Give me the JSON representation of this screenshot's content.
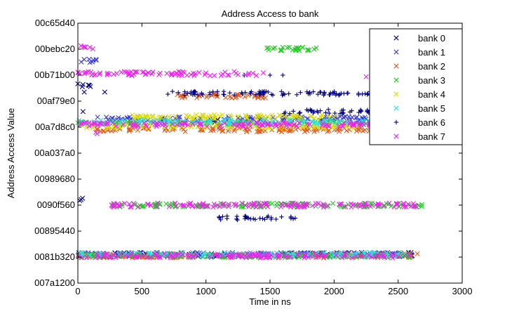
{
  "chart_data": {
    "type": "scatter",
    "title": "Address Access to bank",
    "xlabel": "Time in ns",
    "ylabel": "Address Access Value",
    "xlim": [
      0,
      3000
    ],
    "x_ticks": [
      0,
      500,
      1000,
      1500,
      2000,
      2500,
      3000
    ],
    "y_ticks": [
      "007a1200",
      "0081b320",
      "00895440",
      "0090f560",
      "00989680",
      "00a037a0",
      "00a7d8c0",
      "00af79e0",
      "00b71b00",
      "00bebc20",
      "00c65d40"
    ],
    "ylim_ticks": [
      "007a1200",
      "00c65d40"
    ],
    "grid": false,
    "legend_position": "top-right",
    "series": [
      {
        "name": "bank 0",
        "marker": "x",
        "color": "#000080",
        "bands": [
          {
            "y_tick": 7.6,
            "x": [
              0,
              120
            ]
          },
          {
            "y_tick": 6.26,
            "x": [
              1000,
              1100
            ]
          },
          {
            "y_tick": 3.2,
            "x": [
              0,
              40
            ]
          },
          {
            "y_tick": 1.1,
            "x": [
              0,
              2620
            ]
          }
        ],
        "points": [
          [
            50,
            7.35
          ],
          [
            210,
            7.35
          ],
          [
            40,
            6.6
          ]
        ]
      },
      {
        "name": "bank 1",
        "marker": "x",
        "color": "#3b3bd6",
        "bands": [
          {
            "y_tick": 8.57,
            "x": [
              0,
              150
            ]
          },
          {
            "y_tick": 6.33,
            "x": [
              150,
              2700
            ]
          },
          {
            "y_tick": 1.1,
            "x": [
              0,
              2600
            ]
          }
        ]
      },
      {
        "name": "bank 2",
        "marker": "x",
        "color": "#e05a1e",
        "bands": [
          {
            "y_tick": 7.2,
            "x": [
              750,
              1500
            ]
          },
          {
            "y_tick": 5.9,
            "x": [
              150,
              2700
            ]
          },
          {
            "y_tick": 1.05,
            "x": [
              0,
              2650
            ]
          }
        ]
      },
      {
        "name": "bank 3",
        "marker": "x",
        "color": "#22cc22",
        "bands": [
          {
            "y_tick": 9.0,
            "x": [
              1400,
              1900
            ]
          },
          {
            "y_tick": 6.15,
            "x": [
              0,
              2720
            ]
          },
          {
            "y_tick": 3.0,
            "x": [
              230,
              2720
            ]
          },
          {
            "y_tick": 1.05,
            "x": [
              0,
              2600
            ]
          }
        ]
      },
      {
        "name": "bank 4",
        "marker": "x",
        "color": "#dddd00",
        "bands": [
          {
            "y_tick": 6.4,
            "x": [
              400,
              2000
            ]
          },
          {
            "y_tick": 6.05,
            "x": [
              0,
              2600
            ]
          }
        ]
      },
      {
        "name": "bank 5",
        "marker": "x",
        "color": "#33dddd",
        "bands": [
          {
            "y_tick": 6.2,
            "x": [
              0,
              2500
            ]
          },
          {
            "y_tick": 1.1,
            "x": [
              0,
              2550
            ]
          }
        ]
      },
      {
        "name": "bank 6",
        "marker": "+",
        "color": "#00008b",
        "bands": [
          {
            "y_tick": 7.3,
            "x": [
              700,
              2700
            ]
          },
          {
            "y_tick": 6.6,
            "x": [
              1600,
              2700
            ]
          },
          {
            "y_tick": 2.5,
            "x": [
              1100,
              1700
            ]
          }
        ],
        "points": [
          [
            1500,
            8.0
          ],
          [
            1600,
            8.0
          ],
          [
            1300,
            8.0
          ]
        ]
      },
      {
        "name": "bank 7",
        "marker": "x",
        "color": "#ee22ee",
        "bands": [
          {
            "y_tick": 9.05,
            "x": [
              0,
              130
            ]
          },
          {
            "y_tick": 8.06,
            "x": [
              0,
              1450
            ]
          },
          {
            "y_tick": 6.1,
            "x": [
              0,
              2650
            ]
          },
          {
            "y_tick": 3.0,
            "x": [
              240,
              2650
            ]
          },
          {
            "y_tick": 1.05,
            "x": [
              0,
              2600
            ]
          },
          {
            "y_tick": 8.0,
            "x": [
              2250,
              2330
            ]
          }
        ],
        "points": [
          [
            150,
            5.75
          ],
          [
            140,
            5.8
          ]
        ]
      }
    ]
  }
}
